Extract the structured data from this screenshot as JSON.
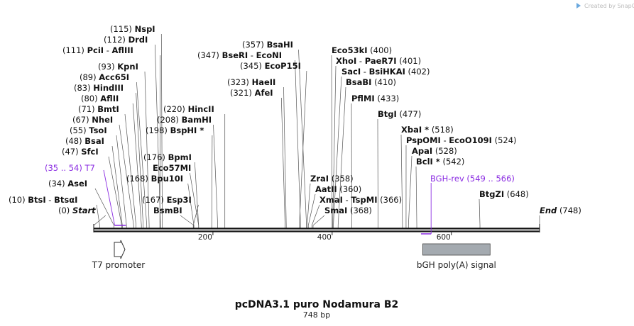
{
  "brand": "Created by SnapGene",
  "title": "pcDNA3.1 puro Nodamura B2",
  "length_label": "748 bp",
  "sequence_length": 748,
  "sites": [
    {
      "pos": 0,
      "pos_label": "(0)",
      "name": "Start",
      "style": "italic"
    },
    {
      "pos": 10,
      "pos_label": "(10)",
      "name": "BtsI",
      "name2": "BtsαI"
    },
    {
      "pos": 34,
      "pos_label": "(34)",
      "name": "AseI"
    },
    {
      "pos": 47,
      "pos_label": "(47)",
      "name": "SfcI"
    },
    {
      "pos": 48,
      "pos_label": "(48)",
      "name": "BsaI"
    },
    {
      "pos": 55,
      "pos_label": "(55)",
      "name": "TsoI"
    },
    {
      "pos": 67,
      "pos_label": "(67)",
      "name": "NheI"
    },
    {
      "pos": 71,
      "pos_label": "(71)",
      "name": "BmtI"
    },
    {
      "pos": 80,
      "pos_label": "(80)",
      "name": "AflII"
    },
    {
      "pos": 83,
      "pos_label": "(83)",
      "name": "HindIII"
    },
    {
      "pos": 89,
      "pos_label": "(89)",
      "name": "Acc65I"
    },
    {
      "pos": 93,
      "pos_label": "(93)",
      "name": "KpnI"
    },
    {
      "pos": 111,
      "pos_label": "(111)",
      "name": "PciI",
      "name2": "AflIII"
    },
    {
      "pos": 112,
      "pos_label": "(112)",
      "name": "DrdI"
    },
    {
      "pos": 115,
      "pos_label": "(115)",
      "name": "NspI"
    },
    {
      "pos": 167,
      "pos_label": "(167)",
      "name": "Esp3I"
    },
    {
      "pos": 168,
      "pos_label": "",
      "name": "BsmBI"
    },
    {
      "pos": 168,
      "pos_label": "(168)",
      "name": "Bpu10I"
    },
    {
      "pos": 176,
      "pos_label": "",
      "name": "Eco57MI"
    },
    {
      "pos": 176,
      "pos_label": "(176)",
      "name": "BpmI"
    },
    {
      "pos": 198,
      "pos_label": "(198)",
      "name": "BspHI *"
    },
    {
      "pos": 208,
      "pos_label": "(208)",
      "name": "BamHI"
    },
    {
      "pos": 220,
      "pos_label": "(220)",
      "name": "HincII"
    },
    {
      "pos": 321,
      "pos_label": "(321)",
      "name": "AfeI"
    },
    {
      "pos": 323,
      "pos_label": "(323)",
      "name": "HaeII"
    },
    {
      "pos": 345,
      "pos_label": "(345)",
      "name": "EcoP15I"
    },
    {
      "pos": 347,
      "pos_label": "(347)",
      "name": "BseRI",
      "name2": "EcoNI"
    },
    {
      "pos": 357,
      "pos_label": "(357)",
      "name": "BsaHI"
    },
    {
      "pos": 358,
      "pos_label": "(358)",
      "name": "ZraI",
      "pos_after": true
    },
    {
      "pos": 360,
      "pos_label": "(360)",
      "name": "AatII",
      "pos_after": true
    },
    {
      "pos": 366,
      "pos_label": "(366)",
      "name": "XmaI",
      "name2": "TspMI",
      "pos_after": true
    },
    {
      "pos": 368,
      "pos_label": "(368)",
      "name": "SmaI",
      "pos_after": true
    },
    {
      "pos": 400,
      "pos_label": "(400)",
      "name": "Eco53kI",
      "pos_after": true
    },
    {
      "pos": 401,
      "pos_label": "(401)",
      "name": "XhoI",
      "name2": "PaeR7I",
      "pos_after": true
    },
    {
      "pos": 402,
      "pos_label": "(402)",
      "name": "SacI",
      "name2": "BsiHKAI",
      "pos_after": true
    },
    {
      "pos": 410,
      "pos_label": "(410)",
      "name": "BsaBI",
      "pos_after": true
    },
    {
      "pos": 433,
      "pos_label": "(433)",
      "name": "PflMI",
      "pos_after": true
    },
    {
      "pos": 477,
      "pos_label": "(477)",
      "name": "BtgI",
      "pos_after": true
    },
    {
      "pos": 518,
      "pos_label": "(518)",
      "name": "XbaI *",
      "pos_after": true
    },
    {
      "pos": 524,
      "pos_label": "(524)",
      "name": "PspOMI",
      "name2": "EcoO109I",
      "pos_after": true
    },
    {
      "pos": 528,
      "pos_label": "(528)",
      "name": "ApaI",
      "pos_after": true
    },
    {
      "pos": 542,
      "pos_label": "(542)",
      "name": "BclI *",
      "pos_after": true
    },
    {
      "pos": 648,
      "pos_label": "(648)",
      "name": "BtgZI",
      "pos_after": true
    },
    {
      "pos": 748,
      "pos_label": "(748)",
      "name": "End",
      "style": "italic",
      "pos_after": true
    }
  ],
  "primers": [
    {
      "name": "T7",
      "range_label": "(35 .. 54)",
      "start": 35,
      "end": 54
    },
    {
      "name": "BGH-rev",
      "range_label": "(549 .. 566)",
      "start": 549,
      "end": 566
    }
  ],
  "features": [
    {
      "name": "T7 promoter",
      "start": 35,
      "end": 54,
      "shape": "arrow"
    },
    {
      "name": "bGH poly(A) signal",
      "start": 552,
      "end": 665,
      "shape": "box"
    }
  ],
  "ruler_ticks": [
    {
      "pos": 200,
      "label": "200"
    },
    {
      "pos": 400,
      "label": "400"
    },
    {
      "pos": 600,
      "label": "600"
    }
  ],
  "colors": {
    "primer": "#8a2be2",
    "backbone": "#111111",
    "feature_box": "#a4aab0"
  }
}
